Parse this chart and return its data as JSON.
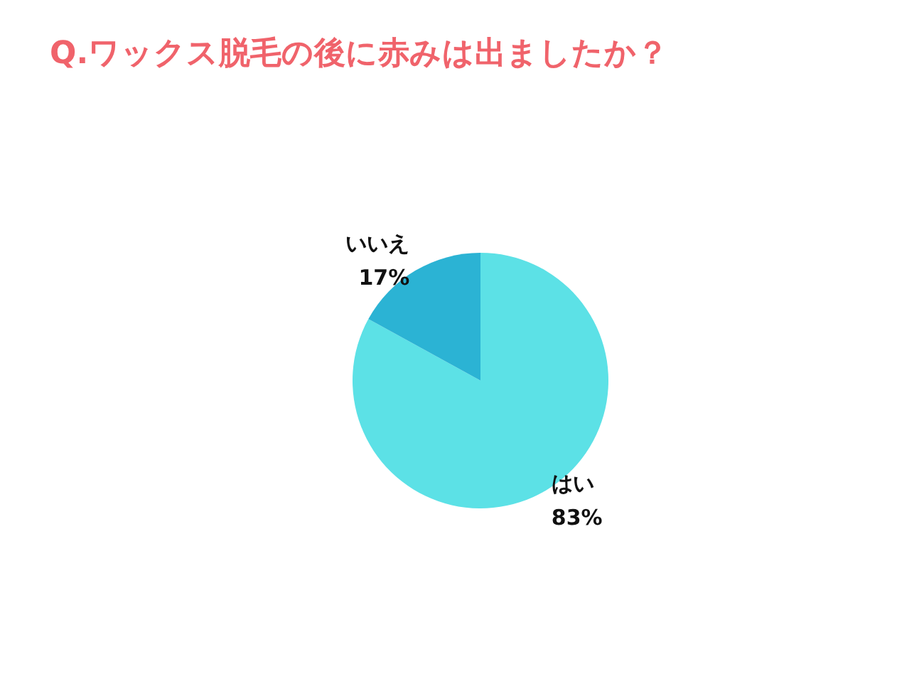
{
  "chart_data": {
    "type": "pie",
    "title": "Q.ワックス脱毛の後に赤みは出ましたか？",
    "categories": [
      "はい",
      "いいえ"
    ],
    "values": [
      83,
      17
    ],
    "value_labels": [
      "83%",
      "17%"
    ],
    "colors": [
      "#5ce1e6",
      "#2bb3d4"
    ],
    "legend": false
  }
}
